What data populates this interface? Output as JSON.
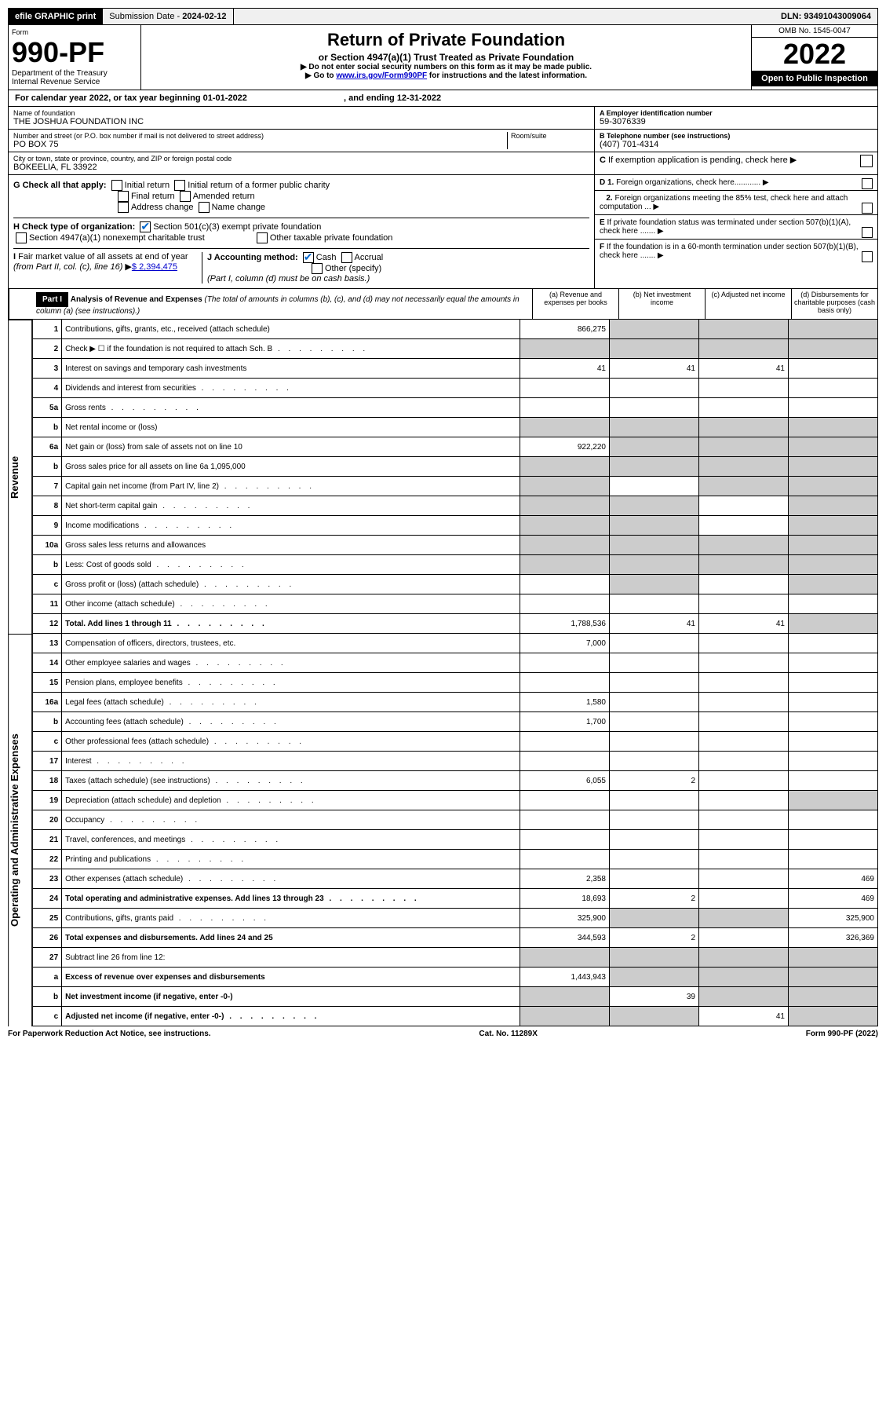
{
  "top": {
    "efile": "efile GRAPHIC print",
    "subdate_label": "Submission Date - ",
    "subdate": "2024-02-12",
    "dln": "DLN: 93491043009064"
  },
  "header": {
    "form_label": "Form",
    "form_num": "990-PF",
    "dept": "Department of the Treasury",
    "irs": "Internal Revenue Service",
    "title": "Return of Private Foundation",
    "subtitle": "or Section 4947(a)(1) Trust Treated as Private Foundation",
    "note1": "▶ Do not enter social security numbers on this form as it may be made public.",
    "note2": "▶ Go to www.irs.gov/Form990PF for instructions and the latest information.",
    "omb": "OMB No. 1545-0047",
    "year": "2022",
    "open": "Open to Public Inspection"
  },
  "cal": {
    "text": "For calendar year 2022, or tax year beginning 01-01-2022",
    "ending": ", and ending 12-31-2022"
  },
  "name": {
    "label": "Name of foundation",
    "value": "THE JOSHUA FOUNDATION INC",
    "addr_label": "Number and street (or P.O. box number if mail is not delivered to street address)",
    "addr": "PO BOX 75",
    "room_label": "Room/suite",
    "city_label": "City or town, state or province, country, and ZIP or foreign postal code",
    "city": "BOKEELIA, FL  33922"
  },
  "id": {
    "a_label": "A Employer identification number",
    "a_value": "59-3076339",
    "b_label": "B Telephone number (see instructions)",
    "b_value": "(407) 701-4314",
    "c_label": "C If exemption application is pending, check here"
  },
  "g": {
    "label": "G Check all that apply:",
    "opts": [
      "Initial return",
      "Initial return of a former public charity",
      "Final return",
      "Amended return",
      "Address change",
      "Name change"
    ]
  },
  "h": {
    "label": "H Check type of organization:",
    "opt1": "Section 501(c)(3) exempt private foundation",
    "opt2": "Section 4947(a)(1) nonexempt charitable trust",
    "opt3": "Other taxable private foundation"
  },
  "i": {
    "label": "I Fair market value of all assets at end of year (from Part II, col. (c), line 16) ▶",
    "value": "$  2,394,475"
  },
  "j": {
    "label": "J Accounting method:",
    "cash": "Cash",
    "accrual": "Accrual",
    "other": "Other (specify)",
    "note": "(Part I, column (d) must be on cash basis.)"
  },
  "right": {
    "d1": "D 1. Foreign organizations, check here............",
    "d2": "2. Foreign organizations meeting the 85% test, check here and attach computation ...",
    "e": "E  If private foundation status was terminated under section 507(b)(1)(A), check here .......",
    "f": "F  If the foundation is in a 60-month termination under section 507(b)(1)(B), check here ......."
  },
  "part1": {
    "label": "Part I",
    "title": "Analysis of Revenue and Expenses",
    "sub": "(The total of amounts in columns (b), (c), and (d) may not necessarily equal the amounts in column (a) (see instructions).)",
    "cols": [
      "(a)  Revenue and expenses per books",
      "(b)  Net investment income",
      "(c)  Adjusted net income",
      "(d)  Disbursements for charitable purposes (cash basis only)"
    ]
  },
  "side": {
    "rev": "Revenue",
    "exp": "Operating and Administrative Expenses"
  },
  "lines": [
    {
      "n": "1",
      "d": "Contributions, gifts, grants, etc., received (attach schedule)",
      "a": "866,275",
      "grey_bcd": true
    },
    {
      "n": "2",
      "d": "Check ▶ ☐ if the foundation is not required to attach Sch. B",
      "dots": true,
      "grey_all": true
    },
    {
      "n": "3",
      "d": "Interest on savings and temporary cash investments",
      "a": "41",
      "b": "41",
      "c": "41"
    },
    {
      "n": "4",
      "d": "Dividends and interest from securities",
      "dots": true
    },
    {
      "n": "5a",
      "d": "Gross rents",
      "dots": true
    },
    {
      "n": "b",
      "d": "Net rental income or (loss)",
      "grey_all": true,
      "half": true
    },
    {
      "n": "6a",
      "d": "Net gain or (loss) from sale of assets not on line 10",
      "a": "922,220",
      "grey_bcd": true
    },
    {
      "n": "b",
      "d": "Gross sales price for all assets on line 6a           1,095,000",
      "grey_all": true,
      "half": true
    },
    {
      "n": "7",
      "d": "Capital gain net income (from Part IV, line 2)",
      "dots": true,
      "grey_a": true,
      "grey_cd": true
    },
    {
      "n": "8",
      "d": "Net short-term capital gain",
      "dots": true,
      "grey_ab": true,
      "grey_d": true
    },
    {
      "n": "9",
      "d": "Income modifications",
      "dots": true,
      "grey_ab": true,
      "grey_d": true
    },
    {
      "n": "10a",
      "d": "Gross sales less returns and allowances",
      "grey_all": true,
      "half": true
    },
    {
      "n": "b",
      "d": "Less: Cost of goods sold",
      "dots": true,
      "grey_all": true,
      "half": true
    },
    {
      "n": "c",
      "d": "Gross profit or (loss) (attach schedule)",
      "dots": true,
      "grey_b": true,
      "grey_d": true
    },
    {
      "n": "11",
      "d": "Other income (attach schedule)",
      "dots": true
    },
    {
      "n": "12",
      "d": "Total. Add lines 1 through 11",
      "dots": true,
      "bold": true,
      "a": "1,788,536",
      "b": "41",
      "c": "41",
      "grey_d": true
    }
  ],
  "exp_lines": [
    {
      "n": "13",
      "d": "Compensation of officers, directors, trustees, etc.",
      "a": "7,000"
    },
    {
      "n": "14",
      "d": "Other employee salaries and wages",
      "dots": true
    },
    {
      "n": "15",
      "d": "Pension plans, employee benefits",
      "dots": true
    },
    {
      "n": "16a",
      "d": "Legal fees (attach schedule)",
      "dots": true,
      "a": "1,580"
    },
    {
      "n": "b",
      "d": "Accounting fees (attach schedule)",
      "dots": true,
      "a": "1,700"
    },
    {
      "n": "c",
      "d": "Other professional fees (attach schedule)",
      "dots": true
    },
    {
      "n": "17",
      "d": "Interest",
      "dots": true
    },
    {
      "n": "18",
      "d": "Taxes (attach schedule) (see instructions)",
      "dots": true,
      "a": "6,055",
      "b": "2"
    },
    {
      "n": "19",
      "d": "Depreciation (attach schedule) and depletion",
      "dots": true,
      "grey_d": true
    },
    {
      "n": "20",
      "d": "Occupancy",
      "dots": true
    },
    {
      "n": "21",
      "d": "Travel, conferences, and meetings",
      "dots": true
    },
    {
      "n": "22",
      "d": "Printing and publications",
      "dots": true
    },
    {
      "n": "23",
      "d": "Other expenses (attach schedule)",
      "dots": true,
      "a": "2,358",
      "dd": "469"
    },
    {
      "n": "24",
      "d": "Total operating and administrative expenses. Add lines 13 through 23",
      "dots": true,
      "bold": true,
      "a": "18,693",
      "b": "2",
      "dd": "469"
    },
    {
      "n": "25",
      "d": "Contributions, gifts, grants paid",
      "dots": true,
      "a": "325,900",
      "grey_bc": true,
      "dd": "325,900"
    },
    {
      "n": "26",
      "d": "Total expenses and disbursements. Add lines 24 and 25",
      "bold": true,
      "a": "344,593",
      "b": "2",
      "dd": "326,369"
    },
    {
      "n": "27",
      "d": "Subtract line 26 from line 12:",
      "grey_all": true
    },
    {
      "n": "a",
      "d": "Excess of revenue over expenses and disbursements",
      "bold": true,
      "a": "1,443,943",
      "grey_bcd": true
    },
    {
      "n": "b",
      "d": "Net investment income (if negative, enter -0-)",
      "bold": true,
      "grey_a": true,
      "b": "39",
      "grey_cd": true
    },
    {
      "n": "c",
      "d": "Adjusted net income (if negative, enter -0-)",
      "dots": true,
      "bold": true,
      "grey_ab": true,
      "c": "41",
      "grey_d": true
    }
  ],
  "footer": {
    "left": "For Paperwork Reduction Act Notice, see instructions.",
    "mid": "Cat. No. 11289X",
    "right": "Form 990-PF (2022)"
  }
}
